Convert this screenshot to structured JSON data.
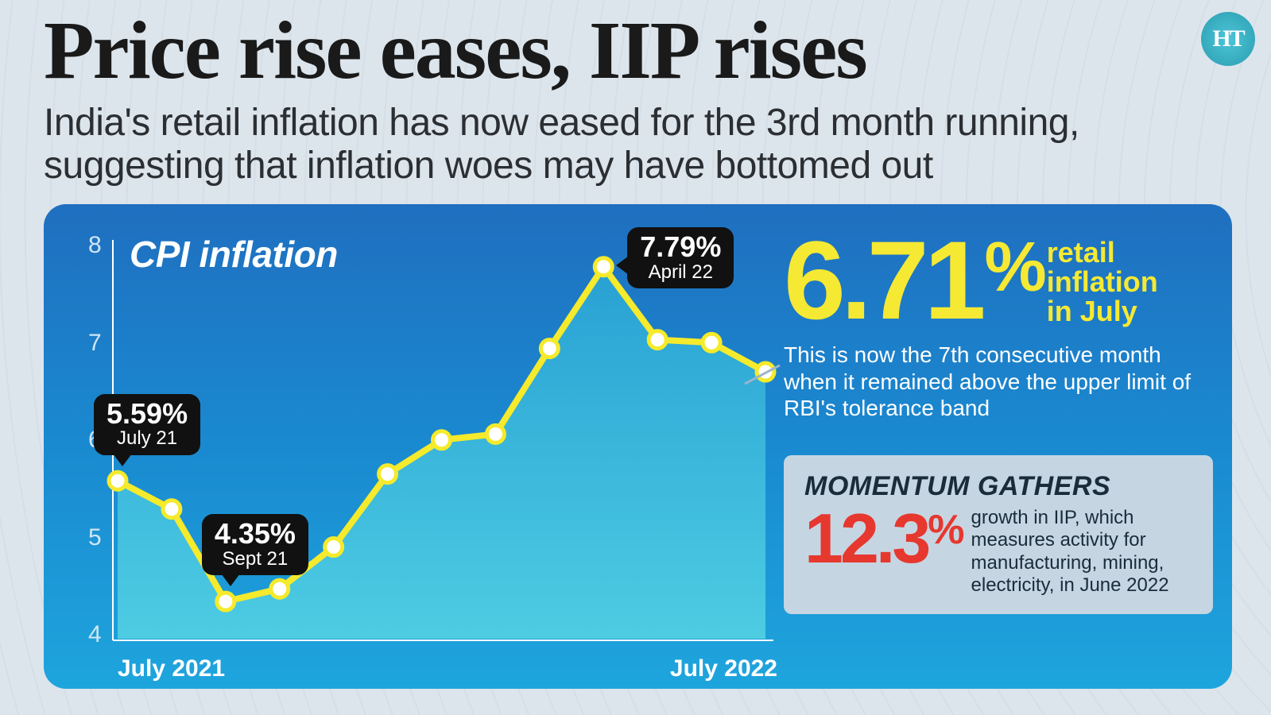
{
  "headline": "Price rise eases, IIP rises",
  "subheadline": "India's retail inflation has now eased for the 3rd month running, suggesting that inflation woes may have bottomed out",
  "logo_text": "HT",
  "colors": {
    "page_bg": "#dde5ec",
    "panel_gradient_top": "#1f6fbf",
    "panel_gradient_mid": "#1a8ad0",
    "panel_gradient_bot": "#1ea5dd",
    "line": "#f5ea2b",
    "area_fill_top": "#2aa8d6",
    "area_fill_bot": "#56d4e4",
    "marker_fill": "#ffffff",
    "marker_stroke": "#f5ea2b",
    "headline_color": "#1a1a1a",
    "accent_yellow": "#f5e933",
    "accent_red": "#e6382f",
    "callout_bg": "#111111",
    "momentum_bg": "#c6d5e2"
  },
  "chart": {
    "title": "CPI inflation",
    "type": "line-area",
    "x_labels": {
      "start": "July 2021",
      "end": "July 2022"
    },
    "y_axis": {
      "min": 4,
      "max": 8,
      "step": 1,
      "ticks": [
        4,
        5,
        6,
        7,
        8
      ]
    },
    "values": [
      5.59,
      5.3,
      4.35,
      4.48,
      4.91,
      5.66,
      6.01,
      6.07,
      6.95,
      7.79,
      7.04,
      7.01,
      6.71
    ],
    "line_width": 8,
    "marker_radius": 11,
    "marker_stroke_width": 5,
    "callouts": [
      {
        "value": "5.59%",
        "date": "July 21",
        "point_index": 0,
        "pos": "above"
      },
      {
        "value": "4.35%",
        "date": "Sept 21",
        "point_index": 2,
        "pos": "above"
      },
      {
        "value": "7.79%",
        "date": "April 22",
        "point_index": 9,
        "pos": "right"
      }
    ]
  },
  "headline_stat": {
    "value": "6.71",
    "unit": "%",
    "label_lines": [
      "retail",
      "inflation",
      "in July"
    ],
    "description": "This is now the 7th consecutive month when it remained above the upper limit of RBI's tolerance band"
  },
  "momentum": {
    "title": "MOMENTUM GATHERS",
    "value": "12.3",
    "unit": "%",
    "description": "growth in IIP, which measures activity for manufacturing, mining, electricity, in June 2022"
  }
}
